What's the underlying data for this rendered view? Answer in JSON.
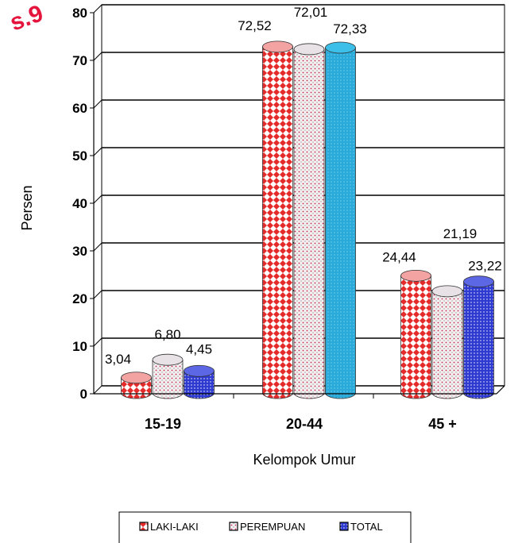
{
  "chart_data": {
    "type": "bar",
    "title": "",
    "xlabel": "Kelompok Umur",
    "ylabel": "Persen",
    "ylim": [
      0,
      80
    ],
    "yticks": [
      "0",
      "10",
      "20",
      "30",
      "40",
      "50",
      "60",
      "70",
      "80"
    ],
    "categories": [
      "15-19",
      "20-44",
      "45 +"
    ],
    "series": [
      {
        "name": "LAKI-LAKI",
        "values": [
          3.04,
          72.52,
          24.44
        ],
        "labels": [
          "3,04",
          "72,52",
          "24,44"
        ],
        "color": "#e32b2b",
        "pattern": "diamond"
      },
      {
        "name": "PEREMPUAN",
        "values": [
          6.8,
          72.01,
          21.19
        ],
        "labels": [
          "6,80",
          "72,01",
          "21,19"
        ],
        "color": "#c9c2c6",
        "pattern": "dots"
      },
      {
        "name": "TOTAL",
        "values": [
          4.45,
          72.33,
          23.22
        ],
        "labels": [
          "4,45",
          "72,33",
          "23,22"
        ],
        "color": "#2f3bd0",
        "pattern": "solid-dots"
      }
    ],
    "grid": true,
    "legend_position": "bottom"
  },
  "watermark": "s.9"
}
